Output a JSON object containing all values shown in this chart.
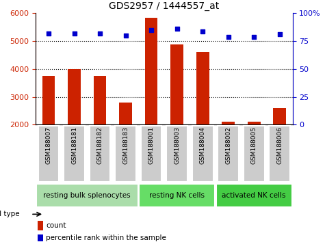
{
  "title": "GDS2957 / 1444557_at",
  "samples": [
    "GSM188007",
    "GSM188181",
    "GSM188182",
    "GSM188183",
    "GSM188001",
    "GSM188003",
    "GSM188004",
    "GSM188002",
    "GSM188005",
    "GSM188006"
  ],
  "bar_values": [
    3750,
    4000,
    3750,
    2800,
    5850,
    4870,
    4600,
    2100,
    2100,
    2600
  ],
  "scatter_values": [
    82,
    82,
    82,
    80,
    85,
    86,
    84,
    79,
    79,
    81
  ],
  "bar_color": "#cc2200",
  "scatter_color": "#0000cc",
  "ylim_left": [
    2000,
    6000
  ],
  "ylim_right": [
    0,
    100
  ],
  "yticks_left": [
    2000,
    3000,
    4000,
    5000,
    6000
  ],
  "yticks_right": [
    0,
    25,
    50,
    75,
    100
  ],
  "groups": [
    {
      "label": "resting bulk splenocytes",
      "indices": [
        0,
        1,
        2,
        3
      ],
      "color": "#aaddaa"
    },
    {
      "label": "resting NK cells",
      "indices": [
        4,
        5,
        6
      ],
      "color": "#66dd66"
    },
    {
      "label": "activated NK cells",
      "indices": [
        7,
        8,
        9
      ],
      "color": "#44cc44"
    }
  ],
  "cell_type_label": "cell type",
  "legend_bar_label": "count",
  "legend_scatter_label": "percentile rank within the sample",
  "tick_bg_color": "#cccccc",
  "sep_line_color": "#888888",
  "plot_bg_color": "#ffffff",
  "outer_bg_color": "#ffffff"
}
